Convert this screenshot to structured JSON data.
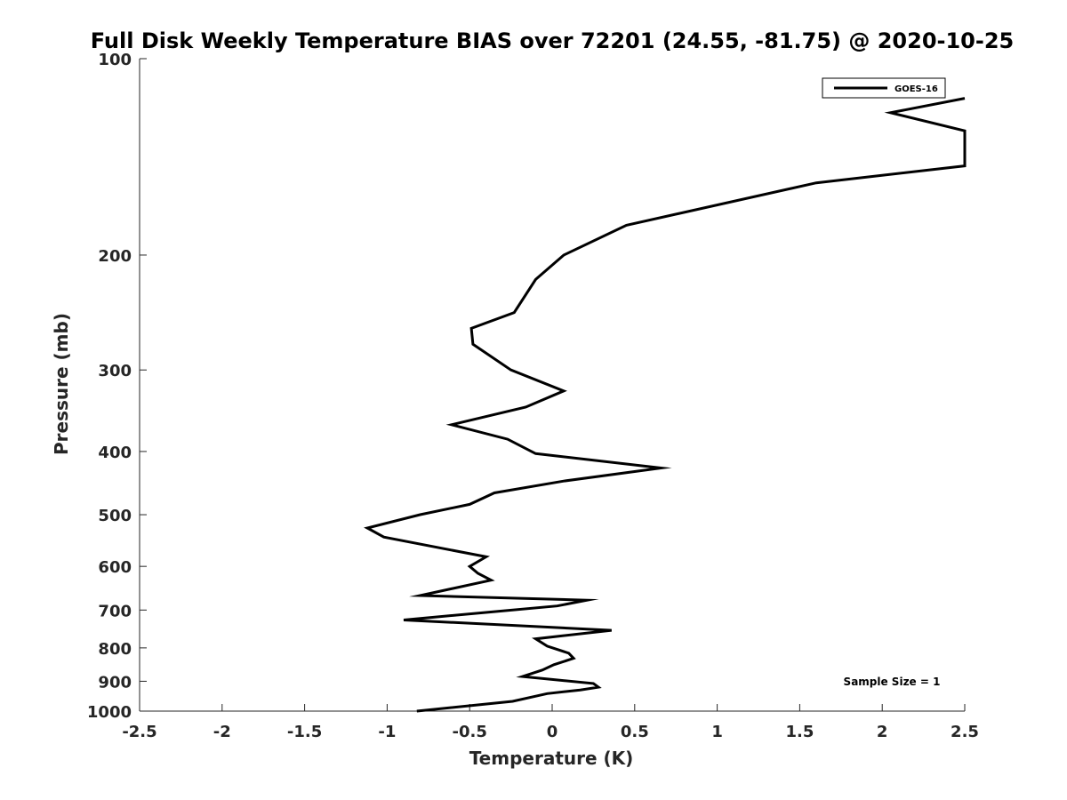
{
  "chart_data": {
    "type": "line",
    "title": "Full Disk Weekly Temperature BIAS over 72201 (24.55, -81.75) @ 2020-10-25",
    "xlabel": "Temperature (K)",
    "ylabel": "Pressure (mb)",
    "xlim": [
      -2.5,
      2.5
    ],
    "ylim": [
      1000,
      100
    ],
    "yscale": "log",
    "y_reversed": true,
    "grid": false,
    "legend_placement": "top-right",
    "x_ticks": [
      "-2.5",
      "-2",
      "-1.5",
      "-1",
      "-0.5",
      "0",
      "0.5",
      "1",
      "1.5",
      "2",
      "2.5"
    ],
    "x_tick_values": [
      -2.5,
      -2,
      -1.5,
      -1,
      -0.5,
      0,
      0.5,
      1,
      1.5,
      2,
      2.5
    ],
    "y_ticks": [
      "100",
      "200",
      "300",
      "400",
      "500",
      "600",
      "700",
      "800",
      "900",
      "1000"
    ],
    "y_tick_values": [
      100,
      200,
      300,
      400,
      500,
      600,
      700,
      800,
      900,
      1000
    ],
    "series": [
      {
        "name": "GOES-16",
        "color": "#000000",
        "points": [
          {
            "x": 2.5,
            "y": 115
          },
          {
            "x": 2.05,
            "y": 121
          },
          {
            "x": 2.5,
            "y": 129
          },
          {
            "x": 2.5,
            "y": 146
          },
          {
            "x": 1.6,
            "y": 155
          },
          {
            "x": 0.45,
            "y": 180
          },
          {
            "x": 0.07,
            "y": 200
          },
          {
            "x": -0.1,
            "y": 218
          },
          {
            "x": -0.23,
            "y": 245
          },
          {
            "x": -0.49,
            "y": 259
          },
          {
            "x": -0.48,
            "y": 274
          },
          {
            "x": -0.25,
            "y": 300
          },
          {
            "x": 0.07,
            "y": 323
          },
          {
            "x": -0.16,
            "y": 342
          },
          {
            "x": -0.61,
            "y": 364
          },
          {
            "x": -0.27,
            "y": 383
          },
          {
            "x": -0.1,
            "y": 403
          },
          {
            "x": 0.66,
            "y": 424
          },
          {
            "x": 0.07,
            "y": 444
          },
          {
            "x": -0.35,
            "y": 463
          },
          {
            "x": -0.5,
            "y": 482
          },
          {
            "x": -0.8,
            "y": 500
          },
          {
            "x": -1.12,
            "y": 524
          },
          {
            "x": -1.02,
            "y": 541
          },
          {
            "x": -0.4,
            "y": 580
          },
          {
            "x": -0.5,
            "y": 600
          },
          {
            "x": -0.45,
            "y": 615
          },
          {
            "x": -0.37,
            "y": 630
          },
          {
            "x": -0.8,
            "y": 665
          },
          {
            "x": 0.21,
            "y": 676
          },
          {
            "x": 0.03,
            "y": 690
          },
          {
            "x": -0.38,
            "y": 705
          },
          {
            "x": -0.9,
            "y": 725
          },
          {
            "x": 0.36,
            "y": 752
          },
          {
            "x": -0.1,
            "y": 775
          },
          {
            "x": -0.03,
            "y": 795
          },
          {
            "x": 0.1,
            "y": 815
          },
          {
            "x": 0.13,
            "y": 830
          },
          {
            "x": 0.01,
            "y": 849
          },
          {
            "x": -0.06,
            "y": 865
          },
          {
            "x": -0.18,
            "y": 885
          },
          {
            "x": 0.25,
            "y": 907
          },
          {
            "x": 0.28,
            "y": 919
          },
          {
            "x": 0.17,
            "y": 928
          },
          {
            "x": -0.03,
            "y": 940
          },
          {
            "x": -0.24,
            "y": 966
          },
          {
            "x": -0.82,
            "y": 1000
          }
        ]
      }
    ],
    "annotations": [
      {
        "text": "Sample Size = 1"
      }
    ]
  },
  "legend": {
    "entries": [
      "GOES-16"
    ]
  }
}
